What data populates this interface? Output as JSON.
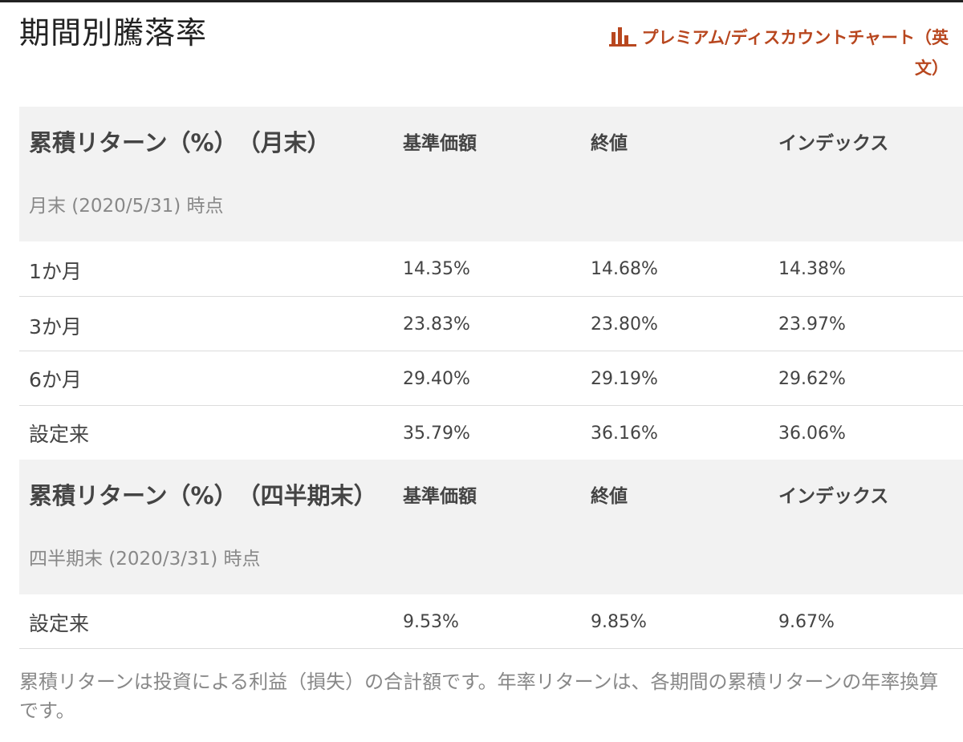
{
  "page": {
    "title": "期間別騰落率",
    "chart_link_label": "プレミアム/ディスカウントチャート（英文）",
    "accent_color": "#b8471f"
  },
  "columns": [
    "基準価額",
    "終値",
    "インデックス"
  ],
  "monthly": {
    "title": "累積リターン（%）　（月末）",
    "as_of": "月末 (2020/5/31) 時点",
    "rows": [
      {
        "label": "1か月",
        "nav": "14.35%",
        "close": "14.68%",
        "index": "14.38%"
      },
      {
        "label": "3か月",
        "nav": "23.83%",
        "close": "23.80%",
        "index": "23.97%"
      },
      {
        "label": "6か月",
        "nav": "29.40%",
        "close": "29.19%",
        "index": "29.62%"
      },
      {
        "label": "設定来",
        "nav": "35.79%",
        "close": "36.16%",
        "index": "36.06%"
      }
    ]
  },
  "quarterly": {
    "title": "累積リターン（%）　（四半期末）",
    "as_of": "四半期末 (2020/3/31) 時点",
    "rows": [
      {
        "label": "設定来",
        "nav": "9.53%",
        "close": "9.85%",
        "index": "9.67%"
      }
    ]
  },
  "footnote": "累積リターンは投資による利益（損失）の合計額です。年率リターンは、各期間の累積リターンの年率換算です。"
}
